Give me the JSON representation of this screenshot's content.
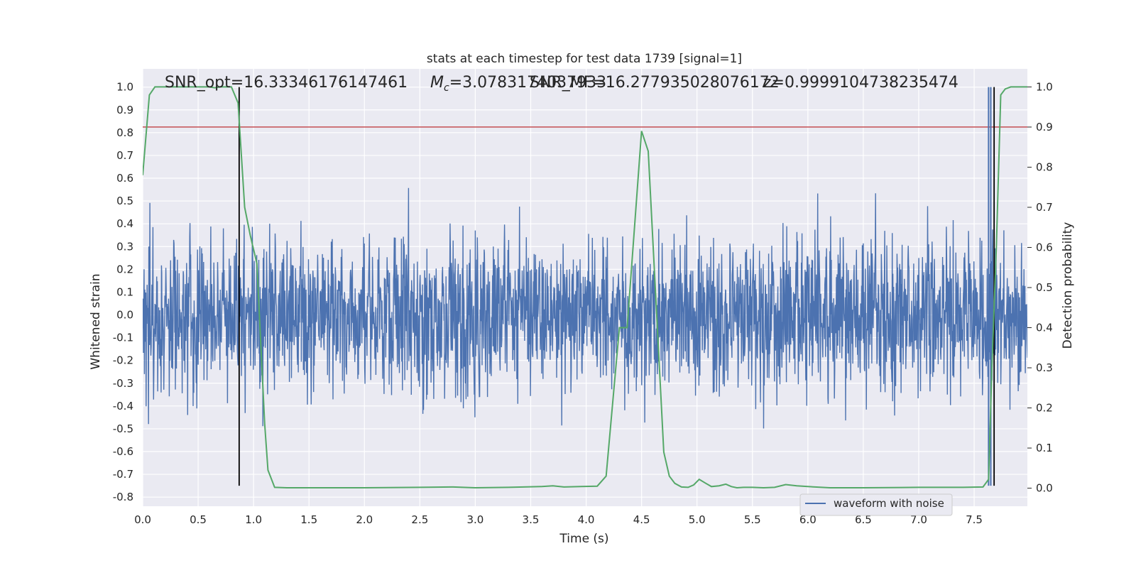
{
  "chart_data": {
    "type": "line",
    "title": "stats at each timestep for test data 1739 [signal=1]",
    "xlabel": "Time (s)",
    "ylabel_left": "Whitened strain",
    "ylabel_right": "Detection probability",
    "xlim": [
      0.0,
      7.98
    ],
    "ylim_left": [
      -0.84,
      1.08
    ],
    "ylim_right": [
      -0.045,
      1.045
    ],
    "grid": true,
    "x_ticks": [
      "0.0",
      "0.5",
      "1.0",
      "1.5",
      "2.0",
      "2.5",
      "3.0",
      "3.5",
      "4.0",
      "4.5",
      "5.0",
      "5.5",
      "6.0",
      "6.5",
      "7.0",
      "7.5"
    ],
    "y_ticks_left": [
      "-0.8",
      "-0.7",
      "-0.6",
      "-0.5",
      "-0.4",
      "-0.3",
      "-0.2",
      "-0.1",
      "0.0",
      "0.1",
      "0.2",
      "0.3",
      "0.4",
      "0.5",
      "0.6",
      "0.7",
      "0.8",
      "0.9",
      "1.0"
    ],
    "y_ticks_right": [
      "0.0",
      "0.1",
      "0.2",
      "0.3",
      "0.4",
      "0.5",
      "0.6",
      "0.7",
      "0.8",
      "0.9",
      "1.0"
    ],
    "annotations": {
      "snr_opt": "SNR_opt=16.33346176147461",
      "chirp_mass_symbol": "M",
      "chirp_mass_sub": "c",
      "chirp_mass_value": "=3.0783174037933",
      "snr_mf": "SNR_MF=16.277935028076172",
      "z_value": "z=0.9999104738235474"
    },
    "legend": {
      "label": "waveform with noise",
      "location": "lower right"
    },
    "series": [
      {
        "name": "waveform with noise",
        "axis": "left",
        "color": "#4c72b0",
        "style": "dense noise waveform",
        "approx_envelope": {
          "typical_amplitude": 0.3,
          "peak_max": 1.0,
          "peak_min": -0.75
        }
      },
      {
        "axis": "right",
        "color": "#55a868",
        "t": [
          0.0,
          0.06,
          0.11,
          0.2,
          0.3,
          0.4,
          0.5,
          0.6,
          0.65,
          0.7,
          0.8,
          0.86,
          0.92,
          0.97,
          1.03,
          1.1,
          1.13,
          1.19,
          1.3,
          1.5,
          2.0,
          2.5,
          2.8,
          3.0,
          3.3,
          3.6,
          3.7,
          3.8,
          3.95,
          4.1,
          4.18,
          4.3,
          4.37,
          4.5,
          4.56,
          4.7,
          4.75,
          4.8,
          4.86,
          4.92,
          4.97,
          5.02,
          5.08,
          5.13,
          5.2,
          5.26,
          5.31,
          5.36,
          5.42,
          5.5,
          5.6,
          5.7,
          5.8,
          5.9,
          6.0,
          6.2,
          6.5,
          7.0,
          7.4,
          7.58,
          7.63,
          7.66,
          7.7,
          7.74,
          7.78,
          7.83,
          7.9,
          7.98
        ],
        "p": [
          0.78,
          0.98,
          1.0,
          1.0,
          1.0,
          1.0,
          1.0,
          1.0,
          0.998,
          1.0,
          1.0,
          0.96,
          0.7,
          0.63,
          0.56,
          0.16,
          0.045,
          0.002,
          0.001,
          0.001,
          0.001,
          0.002,
          0.003,
          0.001,
          0.002,
          0.004,
          0.006,
          0.003,
          0.004,
          0.005,
          0.03,
          0.4,
          0.4,
          0.89,
          0.84,
          0.09,
          0.03,
          0.012,
          0.003,
          0.002,
          0.008,
          0.022,
          0.012,
          0.004,
          0.006,
          0.01,
          0.004,
          0.001,
          0.002,
          0.002,
          0.001,
          0.002,
          0.009,
          0.006,
          0.004,
          0.001,
          0.001,
          0.002,
          0.002,
          0.003,
          0.022,
          0.3,
          0.6,
          0.98,
          0.995,
          1.0,
          1.0,
          1.0
        ]
      }
    ],
    "threshold_line": {
      "axis": "left",
      "value": 0.825,
      "color": "#c44e52"
    },
    "vertical_lines": {
      "x": [
        0.87,
        7.68
      ],
      "y_from": -0.75,
      "y_to": 1.0,
      "color": "#000000"
    },
    "spike_lines": {
      "x": [
        7.63,
        7.65
      ],
      "y_from": -0.75,
      "y_to": 1.0,
      "color": "#4c72b0"
    }
  }
}
